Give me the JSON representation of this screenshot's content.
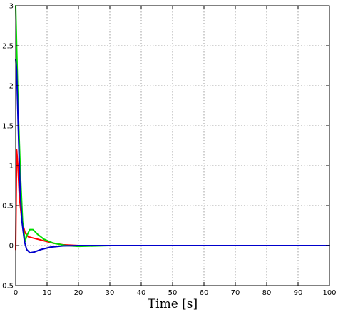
{
  "chart_data": {
    "type": "line",
    "xlabel": "Time [s]",
    "ylabel": "",
    "title": "",
    "xlim": [
      0,
      100
    ],
    "ylim": [
      -0.5,
      3
    ],
    "xticks": [
      0,
      10,
      20,
      30,
      40,
      50,
      60,
      70,
      80,
      90,
      100
    ],
    "yticks": [
      -0.5,
      0,
      0.5,
      1,
      1.5,
      2,
      2.5,
      3
    ],
    "grid": true,
    "series": [
      {
        "color": "#ff0000",
        "points": [
          [
            0,
            -0.05
          ],
          [
            0.3,
            1.2
          ],
          [
            0.7,
            1.0
          ],
          [
            1.2,
            0.6
          ],
          [
            2,
            0.3
          ],
          [
            3,
            0.16
          ],
          [
            4,
            0.11
          ],
          [
            6,
            0.09
          ],
          [
            8,
            0.07
          ],
          [
            10,
            0.05
          ],
          [
            12,
            0.03
          ],
          [
            15,
            0.01
          ],
          [
            20,
            0.0
          ],
          [
            100,
            0.0
          ]
        ]
      },
      {
        "color": "#00dd00",
        "points": [
          [
            0,
            3.0
          ],
          [
            0.3,
            2.5
          ],
          [
            0.8,
            1.7
          ],
          [
            1.5,
            0.9
          ],
          [
            2.2,
            0.3
          ],
          [
            3,
            0.05
          ],
          [
            3.5,
            0.12
          ],
          [
            4.5,
            0.2
          ],
          [
            5.5,
            0.2
          ],
          [
            7,
            0.14
          ],
          [
            9,
            0.08
          ],
          [
            12,
            0.03
          ],
          [
            16,
            0.0
          ],
          [
            20,
            -0.01
          ],
          [
            30,
            0.0
          ],
          [
            100,
            0.0
          ]
        ]
      },
      {
        "color": "#0000cc",
        "points": [
          [
            0,
            2.33
          ],
          [
            0.3,
            2.2
          ],
          [
            0.8,
            1.5
          ],
          [
            1.4,
            0.7
          ],
          [
            2,
            0.3
          ],
          [
            2.8,
            0.05
          ],
          [
            3.5,
            -0.05
          ],
          [
            4.5,
            -0.09
          ],
          [
            6,
            -0.08
          ],
          [
            8,
            -0.05
          ],
          [
            11,
            -0.02
          ],
          [
            15,
            -0.005
          ],
          [
            20,
            0.0
          ],
          [
            100,
            0.0
          ]
        ]
      }
    ]
  }
}
